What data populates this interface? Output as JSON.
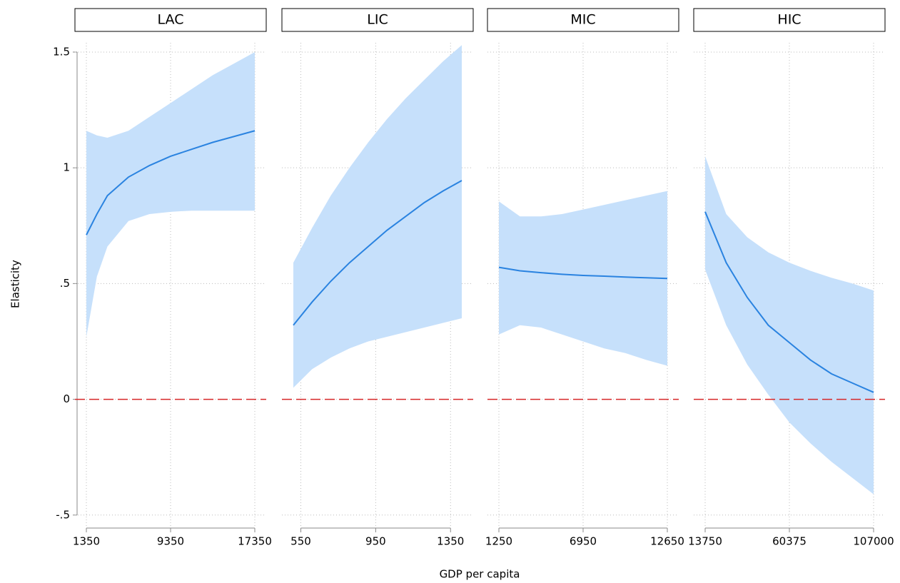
{
  "chart_data": {
    "type": "line",
    "ylabel": "Elasticity",
    "xlabel": "GDP per capita",
    "ylim": [
      -0.55,
      1.54
    ],
    "yticks": [
      {
        "value": -0.5,
        "label": "-.5"
      },
      0,
      {
        "value": 0.5,
        "label": ".5"
      },
      1,
      1.5
    ],
    "grid": true,
    "band_color": "#c6e0fb",
    "line_color": "#2a83e0",
    "hline": {
      "value": 0,
      "color": "#d62728"
    },
    "panels": [
      {
        "title": "LAC",
        "xlim": [
          1350,
          17350
        ],
        "xticks": [
          1350,
          9350,
          17350
        ],
        "x": [
          1350,
          2350,
          3350,
          5350,
          7350,
          9350,
          11350,
          13350,
          15350,
          17350
        ],
        "values": [
          0.71,
          0.8,
          0.88,
          0.96,
          1.01,
          1.05,
          1.08,
          1.11,
          1.135,
          1.16
        ],
        "upper": [
          1.16,
          1.14,
          1.13,
          1.16,
          1.22,
          1.28,
          1.34,
          1.4,
          1.45,
          1.5
        ],
        "lower": [
          0.27,
          0.53,
          0.66,
          0.77,
          0.8,
          0.81,
          0.815,
          0.815,
          0.815,
          0.815
        ]
      },
      {
        "title": "LIC",
        "xlim": [
          510,
          1410
        ],
        "xticks": [
          550,
          950,
          1350
        ],
        "x": [
          510,
          610,
          710,
          810,
          910,
          1010,
          1110,
          1210,
          1310,
          1410
        ],
        "values": [
          0.32,
          0.42,
          0.51,
          0.59,
          0.66,
          0.73,
          0.79,
          0.85,
          0.9,
          0.945
        ],
        "upper": [
          0.59,
          0.74,
          0.88,
          1.0,
          1.11,
          1.21,
          1.3,
          1.38,
          1.46,
          1.53
        ],
        "lower": [
          0.05,
          0.13,
          0.18,
          0.22,
          0.25,
          0.27,
          0.29,
          0.31,
          0.33,
          0.35
        ]
      },
      {
        "title": "MIC",
        "xlim": [
          1250,
          12650
        ],
        "xticks": [
          1250,
          6950,
          12650
        ],
        "x": [
          1250,
          2675,
          4100,
          5525,
          6950,
          8375,
          9800,
          11225,
          12650
        ],
        "values": [
          0.57,
          0.555,
          0.547,
          0.54,
          0.535,
          0.532,
          0.528,
          0.525,
          0.522
        ],
        "upper": [
          0.855,
          0.79,
          0.79,
          0.8,
          0.82,
          0.84,
          0.86,
          0.88,
          0.9
        ],
        "lower": [
          0.28,
          0.32,
          0.31,
          0.28,
          0.25,
          0.22,
          0.2,
          0.17,
          0.145
        ]
      },
      {
        "title": "HIC",
        "xlim": [
          13750,
          107000
        ],
        "xticks": [
          13750,
          60375,
          107000
        ],
        "x": [
          13750,
          25406,
          37063,
          48719,
          60375,
          72031,
          83688,
          95344,
          107000
        ],
        "values": [
          0.81,
          0.59,
          0.44,
          0.32,
          0.245,
          0.17,
          0.11,
          0.07,
          0.03
        ],
        "upper": [
          1.05,
          0.8,
          0.7,
          0.635,
          0.59,
          0.555,
          0.525,
          0.5,
          0.47
        ],
        "lower": [
          0.56,
          0.32,
          0.15,
          0.02,
          -0.1,
          -0.19,
          -0.27,
          -0.34,
          -0.41
        ]
      }
    ]
  }
}
